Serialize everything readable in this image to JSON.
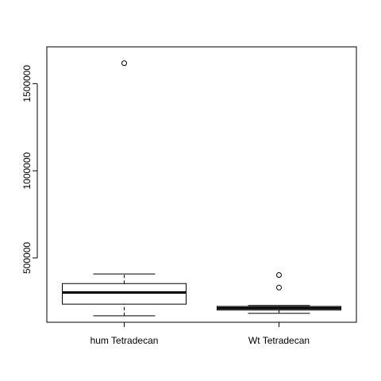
{
  "chart_data": {
    "type": "boxplot",
    "title": "",
    "xlabel": "",
    "ylabel": "",
    "categories": [
      "hum Tetradecan",
      "Wt Tetradecan"
    ],
    "boxes": [
      {
        "name": "hum Tetradecan",
        "whisker_low": 168000,
        "q1": 235000,
        "median": 302000,
        "q3": 353000,
        "whisker_high": 408000,
        "outliers": [
          1617000
        ]
      },
      {
        "name": "Wt Tetradecan",
        "whisker_low": 182000,
        "q1": 201000,
        "median": 212000,
        "q3": 222000,
        "whisker_high": 227000,
        "outliers": [
          330000,
          402000
        ]
      }
    ],
    "yticks": [
      500000,
      1000000,
      1500000
    ],
    "ytick_labels": [
      "500000",
      "1000000",
      "1500000"
    ],
    "ylim": [
      131000,
      1711000
    ],
    "grid": false,
    "legend": "none"
  }
}
